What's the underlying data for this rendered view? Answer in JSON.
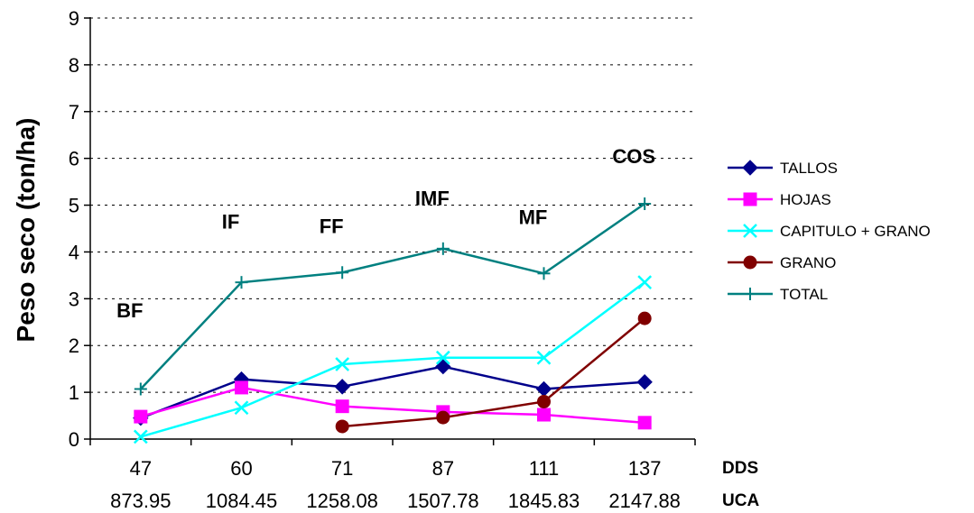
{
  "chart_data": {
    "type": "line",
    "ylabel": "Peso seco (ton/ha)",
    "ylim": [
      0,
      9
    ],
    "yticks": [
      "0",
      "1",
      "2",
      "3",
      "4",
      "5",
      "6",
      "7",
      "8",
      "9"
    ],
    "grid": "horizontal dashed",
    "legend_position": "right",
    "categories": [
      "47",
      "60",
      "71",
      "87",
      "111",
      "137"
    ],
    "categories_secondary": [
      "873.95",
      "1084.45",
      "1258.08",
      "1507.78",
      "1845.83",
      "2147.88"
    ],
    "row_label_primary": "DDS",
    "row_label_secondary": "UCA",
    "stages": [
      {
        "label": "BF",
        "category_index": 0,
        "y": 2.6
      },
      {
        "label": "IF",
        "category_index": 1,
        "y": 4.5
      },
      {
        "label": "FF",
        "category_index": 2,
        "y": 4.4
      },
      {
        "label": "IMF",
        "category_index": 3,
        "y": 5.0
      },
      {
        "label": "MF",
        "category_index": 4,
        "y": 4.6
      },
      {
        "label": "COS",
        "category_index": 5,
        "y": 5.9
      }
    ],
    "series": [
      {
        "name": "TALLOS",
        "color": "#00008B",
        "marker": "diamond",
        "values": [
          0.45,
          1.28,
          1.12,
          1.55,
          1.07,
          1.22
        ]
      },
      {
        "name": "HOJAS",
        "color": "#FF00FF",
        "marker": "square",
        "values": [
          0.48,
          1.1,
          0.7,
          0.58,
          0.52,
          0.35
        ]
      },
      {
        "name": "CAPITULO + GRANO",
        "color": "#00FFFF",
        "marker": "x",
        "values": [
          0.05,
          0.67,
          1.6,
          1.74,
          1.74,
          3.35
        ]
      },
      {
        "name": "GRANO",
        "color": "#800000",
        "marker": "circle",
        "values": [
          null,
          null,
          0.27,
          0.46,
          0.8,
          2.58
        ]
      },
      {
        "name": "TOTAL",
        "color": "#008080",
        "marker": "plus",
        "values": [
          1.07,
          3.35,
          3.56,
          4.07,
          3.54,
          5.03
        ]
      }
    ]
  }
}
